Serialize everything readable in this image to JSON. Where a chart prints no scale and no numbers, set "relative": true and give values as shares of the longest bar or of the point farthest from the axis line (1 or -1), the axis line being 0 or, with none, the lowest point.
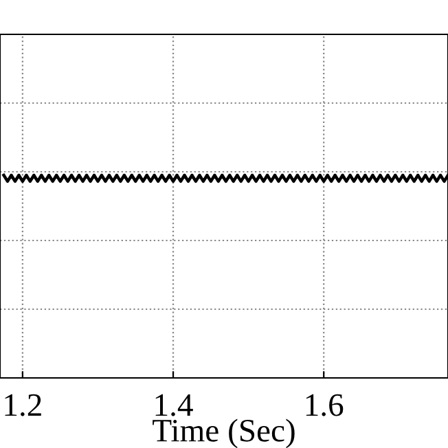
{
  "chart_data": {
    "type": "line",
    "xlabel": "Time (Sec)",
    "relative": true,
    "grid": true,
    "tick_labels": "x",
    "line_style": "solid",
    "marker": "none",
    "xlim": [
      1.17,
      1.765
    ],
    "xticks": [
      1.2,
      1.4,
      1.6
    ],
    "series": [
      {
        "color": "#000000",
        "x": [
          1.175,
          1.18,
          1.185,
          1.19,
          1.195,
          1.2,
          1.205,
          1.21,
          1.215,
          1.22,
          1.225,
          1.23,
          1.235,
          1.24,
          1.245,
          1.25,
          1.255,
          1.26,
          1.265,
          1.27,
          1.275,
          1.28,
          1.285,
          1.29,
          1.295,
          1.3,
          1.305,
          1.31,
          1.315,
          1.32,
          1.325,
          1.33,
          1.335,
          1.34,
          1.345,
          1.35,
          1.355,
          1.36,
          1.365,
          1.37,
          1.375,
          1.38,
          1.385,
          1.39,
          1.395,
          1.4,
          1.405,
          1.41,
          1.415,
          1.42,
          1.425,
          1.43,
          1.435,
          1.44,
          1.445,
          1.45,
          1.455,
          1.46,
          1.465,
          1.47,
          1.475,
          1.48,
          1.485,
          1.49,
          1.495,
          1.5,
          1.505,
          1.51,
          1.515,
          1.52,
          1.525,
          1.53,
          1.535,
          1.54,
          1.545,
          1.55,
          1.555,
          1.56,
          1.565,
          1.57,
          1.575,
          1.58,
          1.585,
          1.59,
          1.595,
          1.6,
          1.605,
          1.61,
          1.615,
          1.62,
          1.625,
          1.63,
          1.635,
          1.64,
          1.645,
          1.65,
          1.655,
          1.66,
          1.665,
          1.67,
          1.675,
          1.68,
          1.685,
          1.69,
          1.695,
          1.7,
          1.705,
          1.71,
          1.715,
          1.72,
          1.725,
          1.73,
          1.735,
          1.74,
          1.745,
          1.75,
          1.755,
          1.76,
          1.765
        ],
        "values": [
          1,
          0.97,
          1,
          0.97,
          1,
          0.97,
          1,
          0.97,
          1,
          0.97,
          1,
          0.97,
          1,
          0.97,
          1,
          0.97,
          1,
          0.97,
          1,
          0.97,
          1,
          0.97,
          1,
          0.97,
          1,
          0.97,
          1,
          0.97,
          1,
          0.97,
          1,
          0.97,
          1,
          0.97,
          1,
          0.97,
          1,
          0.97,
          1,
          0.97,
          1,
          0.97,
          1,
          0.97,
          1,
          0.97,
          1,
          0.97,
          1,
          0.97,
          1,
          0.97,
          1,
          0.97,
          1,
          0.97,
          1,
          0.97,
          1,
          0.97,
          1,
          0.97,
          1,
          0.97,
          1,
          0.97,
          1,
          0.97,
          1,
          0.97,
          1,
          0.97,
          1,
          0.97,
          1,
          0.97,
          1,
          0.97,
          1,
          0.97,
          1,
          0.97,
          1,
          0.97,
          1,
          0.97,
          1,
          0.97,
          1,
          0.97,
          1,
          0.97,
          1,
          0.97,
          1,
          0.97,
          1,
          0.97,
          1,
          0.97,
          1,
          0.97,
          1,
          0.97,
          1,
          0.97,
          1,
          0.97,
          1,
          0.97,
          1,
          0.97,
          1,
          0.97,
          1,
          0.97,
          1,
          0.97,
          1
        ]
      }
    ]
  }
}
